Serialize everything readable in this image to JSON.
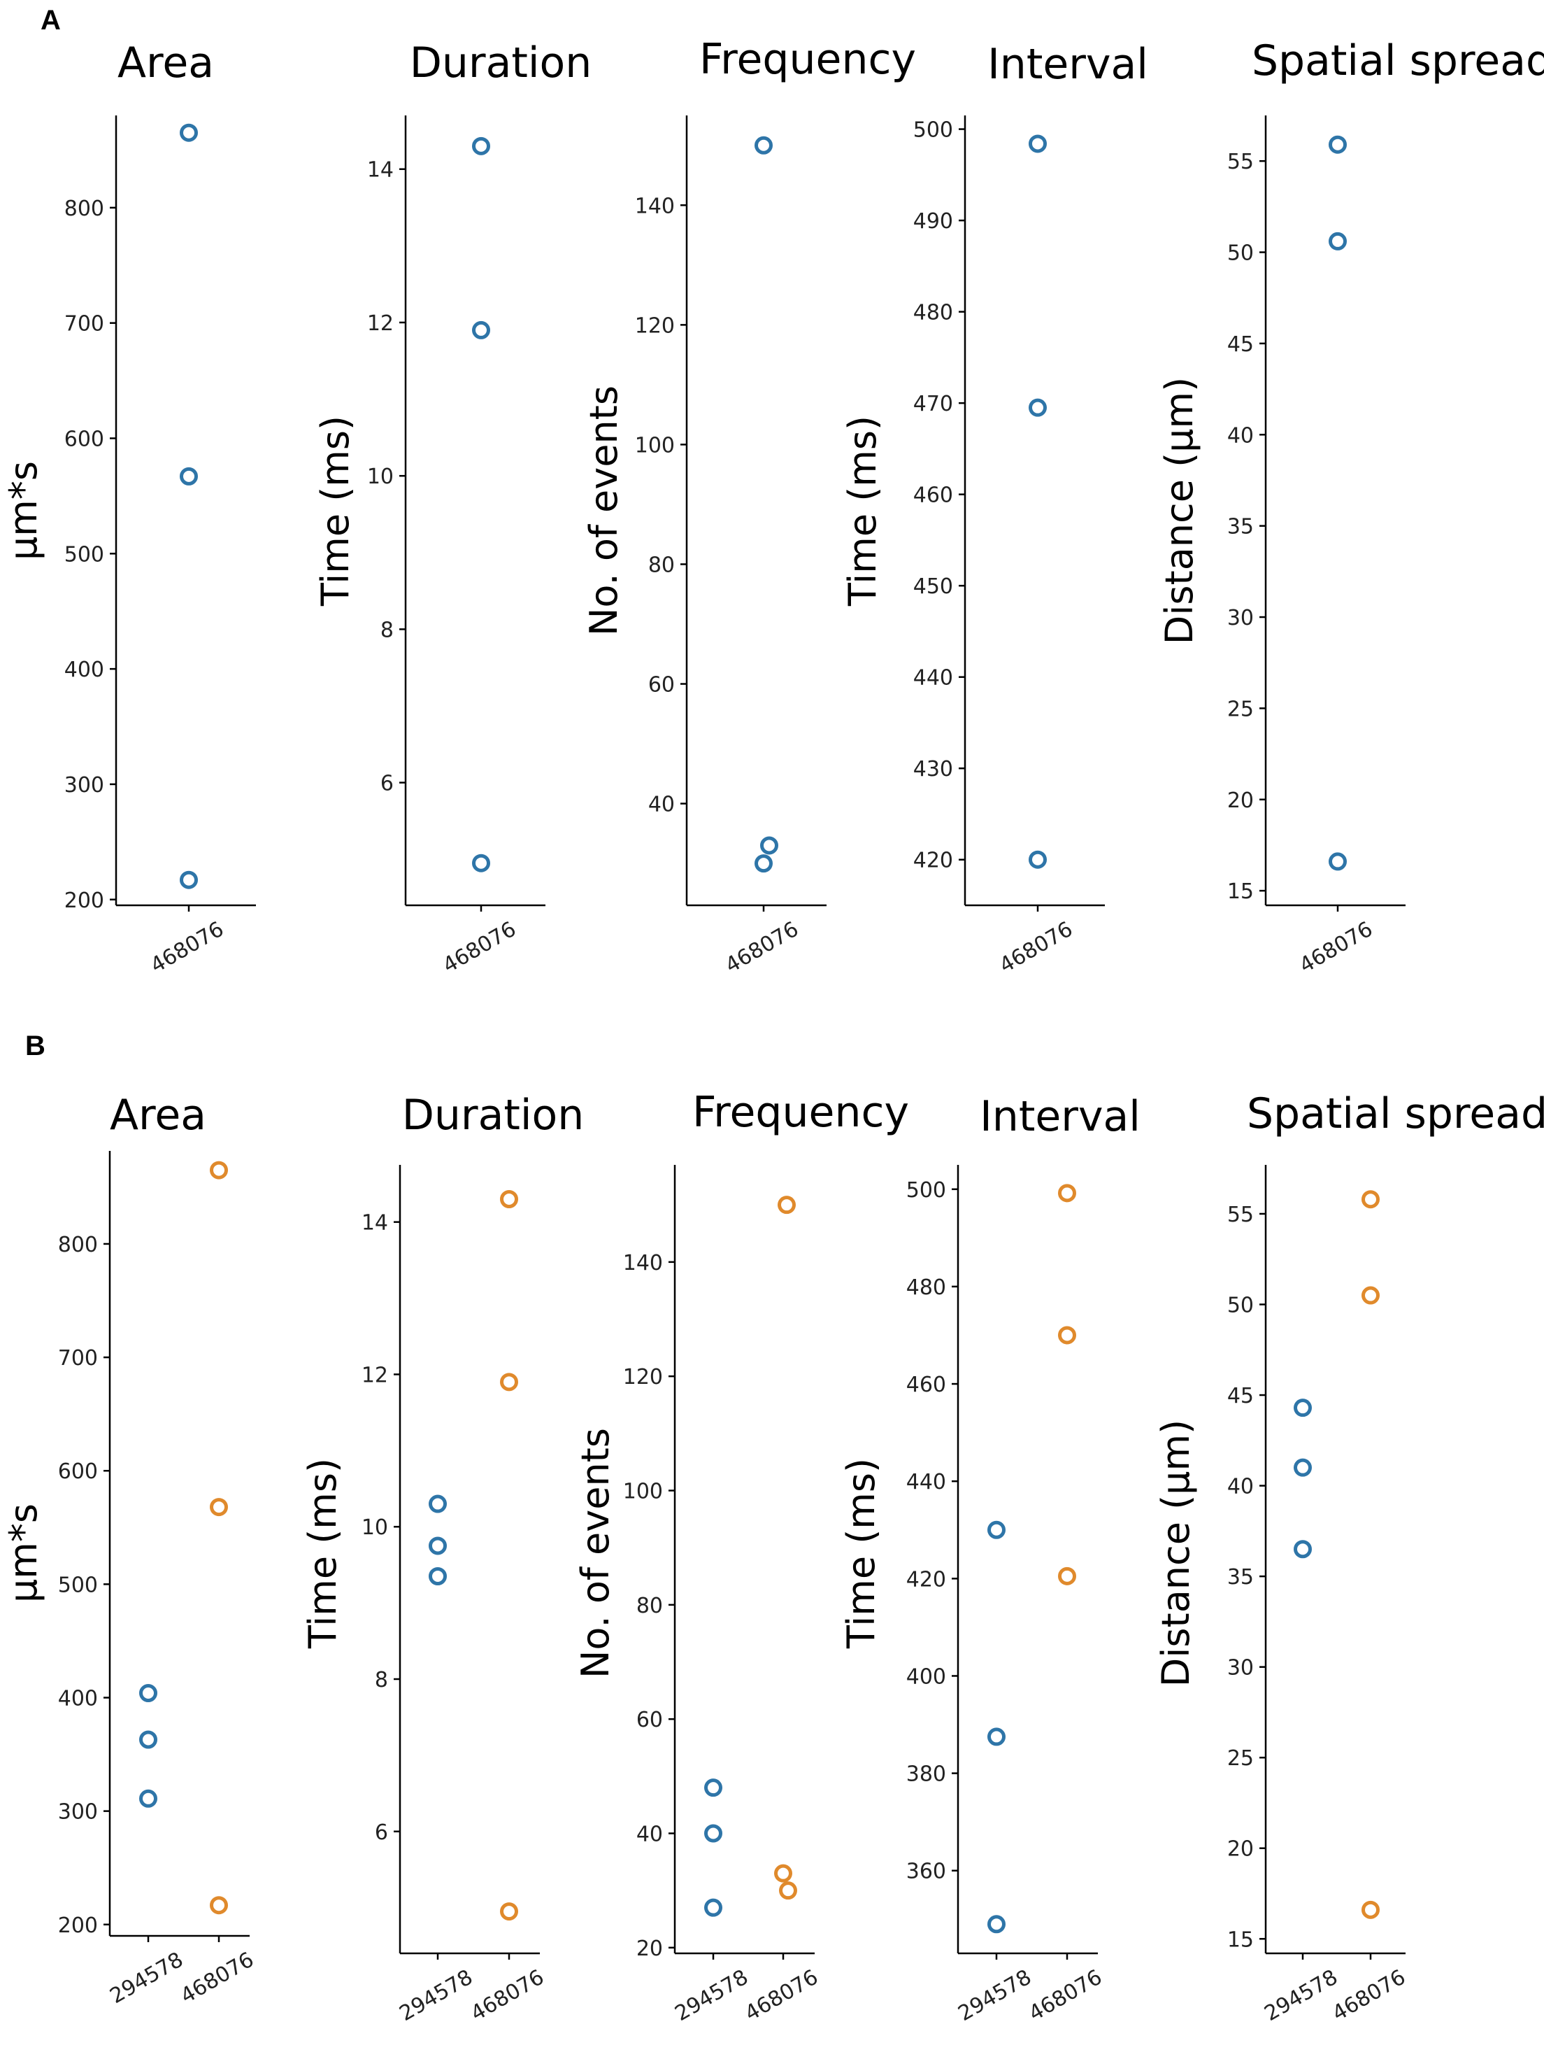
{
  "panels": [
    {
      "letter": "A"
    },
    {
      "letter": "B"
    }
  ],
  "colors": {
    "series_294578": "#2e75a8",
    "series_468076": "#e08a2c",
    "axis": "#000000"
  },
  "chart_data": [
    {
      "type": "scatter",
      "panel": "A",
      "title": "Area",
      "ylabel": "µm*s",
      "xlabel": "",
      "categories": [
        "468076"
      ],
      "ylim": [
        195,
        880
      ],
      "yticks": [
        200,
        300,
        400,
        500,
        600,
        700,
        800
      ],
      "series": [
        {
          "name": "468076",
          "color": "#2e75a8",
          "points": [
            {
              "cat": "468076",
              "y": 865
            },
            {
              "cat": "468076",
              "y": 567
            },
            {
              "cat": "468076",
              "y": 217
            }
          ]
        }
      ]
    },
    {
      "type": "scatter",
      "panel": "A",
      "title": "Duration",
      "ylabel": "Time (ms)",
      "xlabel": "",
      "categories": [
        "468076"
      ],
      "ylim": [
        4.4,
        14.7
      ],
      "yticks": [
        6,
        8,
        10,
        12,
        14
      ],
      "series": [
        {
          "name": "468076",
          "color": "#2e75a8",
          "points": [
            {
              "cat": "468076",
              "y": 14.3
            },
            {
              "cat": "468076",
              "y": 11.9
            },
            {
              "cat": "468076",
              "y": 4.95
            }
          ]
        }
      ]
    },
    {
      "type": "scatter",
      "panel": "A",
      "title": "Frequency",
      "ylabel": "No. of events",
      "xlabel": "",
      "categories": [
        "468076"
      ],
      "ylim": [
        23,
        155
      ],
      "yticks": [
        40,
        60,
        80,
        100,
        120,
        140
      ],
      "series": [
        {
          "name": "468076",
          "color": "#2e75a8",
          "points": [
            {
              "cat": "468076",
              "y": 150,
              "dx": 0
            },
            {
              "cat": "468076",
              "y": 33,
              "dx": 0.08
            },
            {
              "cat": "468076",
              "y": 30,
              "dx": 0
            }
          ]
        }
      ]
    },
    {
      "type": "scatter",
      "panel": "A",
      "title": "Interval",
      "ylabel": "Time (ms)",
      "xlabel": "",
      "categories": [
        "468076"
      ],
      "ylim": [
        415,
        501.5
      ],
      "yticks": [
        420,
        430,
        440,
        450,
        460,
        470,
        480,
        490,
        500
      ],
      "series": [
        {
          "name": "468076",
          "color": "#2e75a8",
          "points": [
            {
              "cat": "468076",
              "y": 498.4
            },
            {
              "cat": "468076",
              "y": 469.5
            },
            {
              "cat": "468076",
              "y": 420
            }
          ]
        }
      ]
    },
    {
      "type": "scatter",
      "panel": "A",
      "title": "Spatial spread",
      "ylabel": "Distance (µm)",
      "xlabel": "",
      "categories": [
        "468076"
      ],
      "ylim": [
        14.2,
        57.5
      ],
      "yticks": [
        15,
        20,
        25,
        30,
        35,
        40,
        45,
        50,
        55
      ],
      "series": [
        {
          "name": "468076",
          "color": "#2e75a8",
          "points": [
            {
              "cat": "468076",
              "y": 55.9
            },
            {
              "cat": "468076",
              "y": 50.6
            },
            {
              "cat": "468076",
              "y": 16.6
            }
          ]
        }
      ]
    },
    {
      "type": "scatter",
      "panel": "B",
      "title": "Area",
      "ylabel": "µm*s",
      "xlabel": "",
      "categories": [
        "294578",
        "468076"
      ],
      "ylim": [
        190,
        882
      ],
      "yticks": [
        200,
        300,
        400,
        500,
        600,
        700,
        800
      ],
      "series": [
        {
          "name": "294578",
          "color": "#2e75a8",
          "points": [
            {
              "cat": "294578",
              "y": 404
            },
            {
              "cat": "294578",
              "y": 363
            },
            {
              "cat": "294578",
              "y": 311
            }
          ]
        },
        {
          "name": "468076",
          "color": "#e08a2c",
          "points": [
            {
              "cat": "468076",
              "y": 865
            },
            {
              "cat": "468076",
              "y": 568
            },
            {
              "cat": "468076",
              "y": 217
            }
          ]
        }
      ]
    },
    {
      "type": "scatter",
      "panel": "B",
      "title": "Duration",
      "ylabel": "Time (ms)",
      "xlabel": "",
      "categories": [
        "294578",
        "468076"
      ],
      "ylim": [
        4.4,
        14.75
      ],
      "yticks": [
        6,
        8,
        10,
        12,
        14
      ],
      "series": [
        {
          "name": "294578",
          "color": "#2e75a8",
          "points": [
            {
              "cat": "294578",
              "y": 10.3
            },
            {
              "cat": "294578",
              "y": 9.75
            },
            {
              "cat": "294578",
              "y": 9.35
            }
          ]
        },
        {
          "name": "468076",
          "color": "#e08a2c",
          "points": [
            {
              "cat": "468076",
              "y": 14.3
            },
            {
              "cat": "468076",
              "y": 11.9
            },
            {
              "cat": "468076",
              "y": 4.95
            }
          ]
        }
      ]
    },
    {
      "type": "scatter",
      "panel": "B",
      "title": "Frequency",
      "ylabel": "No. of events",
      "xlabel": "",
      "categories": [
        "294578",
        "468076"
      ],
      "ylim": [
        19,
        157
      ],
      "yticks": [
        20,
        40,
        60,
        80,
        100,
        120,
        140
      ],
      "series": [
        {
          "name": "294578",
          "color": "#2e75a8",
          "points": [
            {
              "cat": "294578",
              "y": 48
            },
            {
              "cat": "294578",
              "y": 40
            },
            {
              "cat": "294578",
              "y": 27
            }
          ]
        },
        {
          "name": "468076",
          "color": "#e08a2c",
          "points": [
            {
              "cat": "468076",
              "y": 150,
              "dx": 0.05
            },
            {
              "cat": "468076",
              "y": 33,
              "dx": 0
            },
            {
              "cat": "468076",
              "y": 30,
              "dx": 0.07
            }
          ]
        }
      ]
    },
    {
      "type": "scatter",
      "panel": "B",
      "title": "Interval",
      "ylabel": "Time (ms)",
      "xlabel": "",
      "categories": [
        "294578",
        "468076"
      ],
      "ylim": [
        343,
        505
      ],
      "yticks": [
        360,
        380,
        400,
        420,
        440,
        460,
        480,
        500
      ],
      "series": [
        {
          "name": "294578",
          "color": "#2e75a8",
          "points": [
            {
              "cat": "294578",
              "y": 430
            },
            {
              "cat": "294578",
              "y": 387.5
            },
            {
              "cat": "294578",
              "y": 349
            }
          ]
        },
        {
          "name": "468076",
          "color": "#e08a2c",
          "points": [
            {
              "cat": "468076",
              "y": 499.2
            },
            {
              "cat": "468076",
              "y": 470
            },
            {
              "cat": "468076",
              "y": 420.5
            }
          ]
        }
      ]
    },
    {
      "type": "scatter",
      "panel": "B",
      "title": "Spatial spread",
      "ylabel": "Distance (µm)",
      "xlabel": "",
      "categories": [
        "294578",
        "468076"
      ],
      "ylim": [
        14.2,
        57.7
      ],
      "yticks": [
        15,
        20,
        25,
        30,
        35,
        40,
        45,
        50,
        55
      ],
      "series": [
        {
          "name": "294578",
          "color": "#2e75a8",
          "points": [
            {
              "cat": "294578",
              "y": 44.3
            },
            {
              "cat": "294578",
              "y": 41
            },
            {
              "cat": "294578",
              "y": 36.5
            }
          ]
        },
        {
          "name": "468076",
          "color": "#e08a2c",
          "points": [
            {
              "cat": "468076",
              "y": 55.8
            },
            {
              "cat": "468076",
              "y": 50.5
            },
            {
              "cat": "468076",
              "y": 16.6
            }
          ]
        }
      ]
    }
  ]
}
